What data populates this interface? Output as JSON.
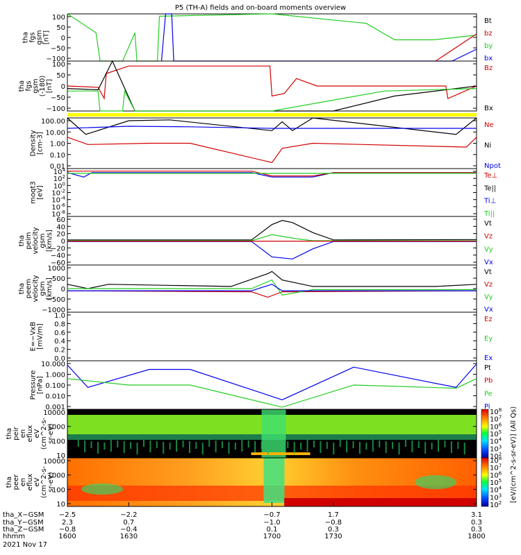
{
  "title": "P5 (TH-A) fields and on-board moments overview",
  "date_label": "2021 Nov 17",
  "colors": {
    "black": "#000000",
    "red": "#d00000",
    "green": "#22cc22",
    "blue": "#0000ee",
    "yellow": "#ffff00"
  },
  "chart_data": [
    {
      "type": "line",
      "panel": "fgs-gsm",
      "ylabel": [
        "tha",
        "fgs",
        "gsm",
        "[nT]"
      ],
      "yticks": [
        "100",
        "50",
        "0",
        "−50",
        "−100"
      ],
      "ylim": [
        -100,
        100
      ],
      "legend": [
        {
          "text": "Bt",
          "color": "#000000"
        },
        {
          "text": "bz",
          "color": "#d00000"
        },
        {
          "text": "by",
          "color": "#22cc22"
        },
        {
          "text": "bx",
          "color": "#0000ee"
        }
      ],
      "series": [
        {
          "name": "by",
          "color": "#22cc22",
          "points": [
            [
              1600,
              100
            ],
            [
              1614,
              20
            ],
            [
              1616,
              -100
            ],
            [
              1627,
              -100
            ],
            [
              1633,
              20
            ],
            [
              1634,
              -100
            ],
            [
              1644,
              -100
            ],
            [
              1645,
              90
            ],
            [
              1700,
              100
            ],
            [
              1746,
              60
            ],
            [
              1760,
              -10
            ],
            [
              1779,
              -10
            ],
            [
              1800,
              10
            ]
          ]
        },
        {
          "name": "bx",
          "color": "#0000ee",
          "points": [
            [
              1646,
              -100
            ],
            [
              1648,
              100
            ],
            [
              1651,
              100
            ],
            [
              1652,
              -100
            ],
            [
              1788,
              -100
            ],
            [
              1800,
              -50
            ]
          ]
        },
        {
          "name": "bz",
          "color": "#d00000",
          "points": [
            [
              1780,
              -100
            ],
            [
              1800,
              15
            ]
          ]
        }
      ]
    },
    {
      "type": "line",
      "panel": "fgs-gsm-sm",
      "ylabel": [
        "tha",
        "fgs",
        "gsm",
        "(-180)",
        "[nT]"
      ],
      "yticks": [
        "100",
        "50",
        "0",
        "−50",
        "−100"
      ],
      "ylim": [
        -100,
        100
      ],
      "legend": [
        {
          "text": "Bz",
          "color": "#d00000"
        },
        {
          "text": "Bx",
          "color": "#000000"
        }
      ],
      "series": [
        {
          "name": "Bz",
          "color": "#d00000",
          "points": [
            [
              1600,
              0
            ],
            [
              1615,
              -5
            ],
            [
              1618,
              -50
            ],
            [
              1619,
              50
            ],
            [
              1630,
              80
            ],
            [
              1699,
              80
            ],
            [
              1700,
              -40
            ],
            [
              1706,
              -30
            ],
            [
              1712,
              30
            ],
            [
              1722,
              0
            ],
            [
              1785,
              0
            ],
            [
              1786,
              -50
            ],
            [
              1800,
              0
            ]
          ]
        },
        {
          "name": "Bx",
          "color": "#000000",
          "points": [
            [
              1600,
              -10
            ],
            [
              1615,
              -15
            ],
            [
              1622,
              100
            ],
            [
              1633,
              -100
            ],
            [
              1700,
              -100
            ],
            [
              1730,
              -100
            ],
            [
              1760,
              -40
            ],
            [
              1800,
              0
            ]
          ]
        },
        {
          "name": "by",
          "color": "#22cc22",
          "points": [
            [
              1600,
              -20
            ],
            [
              1615,
              -20
            ],
            [
              1616,
              -100
            ],
            [
              1627,
              -100
            ],
            [
              1628,
              -20
            ],
            [
              1633,
              -100
            ],
            [
              1700,
              -100
            ],
            [
              1755,
              -20
            ],
            [
              1800,
              -10
            ]
          ]
        }
      ]
    },
    {
      "type": "line",
      "panel": "density",
      "ylabel": [
        "Density",
        "[cm-3]"
      ],
      "yticks": [
        "100.00",
        "10.00",
        "1.00",
        "0.10",
        "0.01"
      ],
      "yscale": "log",
      "ylim": [
        0.01,
        100
      ],
      "legend": [
        {
          "text": "Ne",
          "color": "#d00000"
        },
        {
          "text": "Ni",
          "color": "#000000"
        },
        {
          "text": "Npot",
          "color": "#0000ee"
        }
      ],
      "series": [
        {
          "name": "Ni",
          "color": "#000000",
          "points": [
            [
              1600,
              100
            ],
            [
              1609,
              5
            ],
            [
              1630,
              60
            ],
            [
              1650,
              70
            ],
            [
              1700,
              10
            ],
            [
              1705,
              50
            ],
            [
              1710,
              10
            ],
            [
              1720,
              200
            ],
            [
              1790,
              5
            ],
            [
              1800,
              100
            ]
          ]
        },
        {
          "name": "Npot",
          "color": "#0000ee",
          "points": [
            [
              1600,
              15
            ],
            [
              1630,
              22
            ],
            [
              1660,
              20
            ],
            [
              1700,
              15
            ],
            [
              1800,
              15
            ]
          ]
        },
        {
          "name": "Ne",
          "color": "#d00000",
          "points": [
            [
              1600,
              3
            ],
            [
              1610,
              0.8
            ],
            [
              1640,
              1
            ],
            [
              1660,
              1
            ],
            [
              1700,
              0.03
            ],
            [
              1705,
              0.4
            ],
            [
              1720,
              1
            ],
            [
              1795,
              0.5
            ],
            [
              1800,
              3
            ]
          ]
        }
      ]
    },
    {
      "type": "line",
      "panel": "temperature",
      "ylabel": [
        "moqt3",
        "[eV]"
      ],
      "yticks": [
        "10^4",
        "10^2",
        "10^0",
        "10^-2",
        "10^-4",
        "10^-6",
        "10^-8"
      ],
      "yscale": "log",
      "ylim": [
        1e-09,
        10000
      ],
      "legend": [
        {
          "text": "Te⊥",
          "color": "#d00000"
        },
        {
          "text": "Te||",
          "color": "#000000"
        },
        {
          "text": "Ti⊥",
          "color": "#0000ee"
        },
        {
          "text": "Ti||",
          "color": "#22cc22"
        }
      ],
      "series": [
        {
          "name": "Ti⊥",
          "color": "#0000ee",
          "points": [
            [
              1600,
              800
            ],
            [
              1608,
              50
            ],
            [
              1612,
              800
            ],
            [
              1690,
              800
            ],
            [
              1700,
              50
            ],
            [
              1720,
              50
            ],
            [
              1730,
              800
            ],
            [
              1800,
              800
            ]
          ]
        },
        {
          "name": "Te⊥",
          "color": "#d00000",
          "points": [
            [
              1600,
              2000
            ],
            [
              1690,
              2000
            ],
            [
              1700,
              100
            ],
            [
              1720,
              100
            ],
            [
              1730,
              800
            ],
            [
              1800,
              800
            ]
          ]
        },
        {
          "name": "Ti||",
          "color": "#22cc22",
          "points": [
            [
              1600,
              500
            ],
            [
              1800,
              500
            ]
          ]
        }
      ]
    },
    {
      "type": "line",
      "panel": "peim-velocity",
      "ylabel": [
        "tha",
        "peim",
        "velocity",
        "gsm",
        "[km/s]"
      ],
      "yticks": [
        "60",
        "40",
        "20",
        "0",
        "−20",
        "−40",
        "−60"
      ],
      "ylim": [
        -60,
        60
      ],
      "legend": [
        {
          "text": "Vt",
          "color": "#000000"
        },
        {
          "text": "Vz",
          "color": "#d00000"
        },
        {
          "text": "Vy",
          "color": "#22cc22"
        },
        {
          "text": "Vx",
          "color": "#0000ee"
        }
      ],
      "series": [
        {
          "name": "Vt",
          "color": "#000000",
          "points": [
            [
              1600,
              2
            ],
            [
              1690,
              2
            ],
            [
              1700,
              40
            ],
            [
              1705,
              50
            ],
            [
              1710,
              45
            ],
            [
              1720,
              20
            ],
            [
              1730,
              2
            ],
            [
              1800,
              3
            ]
          ]
        },
        {
          "name": "Vx",
          "color": "#0000ee",
          "points": [
            [
              1600,
              -2
            ],
            [
              1690,
              -2
            ],
            [
              1700,
              -40
            ],
            [
              1710,
              -45
            ],
            [
              1720,
              -20
            ],
            [
              1730,
              -2
            ],
            [
              1800,
              -2
            ]
          ]
        },
        {
          "name": "Vy",
          "color": "#22cc22",
          "points": [
            [
              1600,
              0
            ],
            [
              1690,
              0
            ],
            [
              1700,
              15
            ],
            [
              1712,
              5
            ],
            [
              1720,
              0
            ],
            [
              1800,
              0
            ]
          ]
        },
        {
          "name": "Vz",
          "color": "#d00000",
          "points": [
            [
              1600,
              -1
            ],
            [
              1800,
              -1
            ]
          ]
        }
      ]
    },
    {
      "type": "line",
      "panel": "peem-velocity",
      "ylabel": [
        "tha",
        "peem",
        "velocity",
        "gsm",
        "[km/s]"
      ],
      "yticks": [
        "1000",
        "500",
        "0",
        "−500",
        "−1000"
      ],
      "ylim": [
        -1000,
        1200
      ],
      "legend": [
        {
          "text": "Vt",
          "color": "#000000"
        },
        {
          "text": "Vz",
          "color": "#d00000"
        },
        {
          "text": "Vy",
          "color": "#22cc22"
        },
        {
          "text": "Vx",
          "color": "#0000ee"
        }
      ],
      "series": [
        {
          "name": "Vt",
          "color": "#000000",
          "points": [
            [
              1600,
              300
            ],
            [
              1610,
              100
            ],
            [
              1620,
              300
            ],
            [
              1680,
              200
            ],
            [
              1698,
              800
            ],
            [
              1700,
              900
            ],
            [
              1705,
              500
            ],
            [
              1720,
              200
            ],
            [
              1780,
              200
            ],
            [
              1800,
              300
            ]
          ]
        },
        {
          "name": "Vz",
          "color": "#d00000",
          "points": [
            [
              1600,
              0
            ],
            [
              1690,
              -50
            ],
            [
              1698,
              -300
            ],
            [
              1705,
              -50
            ],
            [
              1800,
              0
            ]
          ]
        },
        {
          "name": "Vy",
          "color": "#22cc22",
          "points": [
            [
              1600,
              100
            ],
            [
              1690,
              100
            ],
            [
              1700,
              500
            ],
            [
              1705,
              -200
            ],
            [
              1720,
              50
            ],
            [
              1800,
              50
            ]
          ]
        },
        {
          "name": "Vx",
          "color": "#0000ee",
          "points": [
            [
              1600,
              0
            ],
            [
              1690,
              0
            ],
            [
              1700,
              300
            ],
            [
              1705,
              0
            ],
            [
              1800,
              0
            ]
          ]
        }
      ]
    },
    {
      "type": "line",
      "panel": "efield",
      "ylabel": [
        "E=−VxB",
        "[mV/m]"
      ],
      "yticks": [
        "1.0",
        "0.8",
        "0.6",
        "0.4",
        "0.2",
        "0.0"
      ],
      "ylim": [
        0,
        1
      ],
      "legend": [
        {
          "text": "Ez",
          "color": "#d00000"
        },
        {
          "text": "Ey",
          "color": "#22cc22"
        },
        {
          "text": "Ex",
          "color": "#0000ee"
        }
      ],
      "series": []
    },
    {
      "type": "line",
      "panel": "pressure",
      "ylabel": [
        "Pressure",
        "[nPa]"
      ],
      "yticks": [
        "10.000",
        "1.000",
        "0.100",
        "0.010",
        "0.001"
      ],
      "yscale": "log",
      "ylim": [
        0.0005,
        20
      ],
      "legend": [
        {
          "text": "Pt",
          "color": "#000000"
        },
        {
          "text": "Pb",
          "color": "#d00000"
        },
        {
          "text": "Pe",
          "color": "#22cc22"
        },
        {
          "text": "Pi",
          "color": "#0000ee"
        }
      ],
      "series": [
        {
          "name": "Pi",
          "color": "#0000ee",
          "points": [
            [
              1600,
              8
            ],
            [
              1610,
              0.06
            ],
            [
              1640,
              3
            ],
            [
              1660,
              3
            ],
            [
              1705,
              0.004
            ],
            [
              1740,
              5
            ],
            [
              1790,
              0.06
            ],
            [
              1800,
              10
            ]
          ]
        },
        {
          "name": "Pe",
          "color": "#22cc22",
          "points": [
            [
              1600,
              0.4
            ],
            [
              1630,
              0.1
            ],
            [
              1660,
              0.1
            ],
            [
              1705,
              0.0008
            ],
            [
              1740,
              0.1
            ],
            [
              1790,
              0.05
            ],
            [
              1800,
              0.4
            ]
          ]
        }
      ]
    },
    {
      "type": "heatmap",
      "panel": "peir-eflux",
      "ylabel": [
        "tha",
        "peir",
        "en",
        "eflux",
        "eV",
        "(cm^2-s-",
        "sr-eV)"
      ],
      "yticks": [
        "10000",
        "1000",
        "100",
        "10"
      ],
      "yscale": "log",
      "colorbar_ticks": [
        "10^8",
        "10^7",
        "10^6",
        "10^5",
        "10^4",
        "10^3",
        "10^2"
      ]
    },
    {
      "type": "heatmap",
      "panel": "peer-eflux",
      "ylabel": [
        "tha",
        "peer",
        "en",
        "eflux",
        "eV",
        "(cm^2-s-",
        "sr-eV)"
      ],
      "yticks": [
        "10000",
        "1000",
        "100",
        "10"
      ],
      "yscale": "log",
      "colorbar_ticks": [
        "10^8",
        "10^7",
        "10^6",
        "10^5",
        "10^4",
        "10^3",
        "10^2"
      ],
      "colorbar_label": "[eV/(cm^2-s-sr-eV)] (All Qs)"
    }
  ],
  "x_axis": {
    "row_labels": [
      "tha_X−GSM",
      "tha_Y−GSM",
      "tha_Z−GSM",
      "hhmm"
    ],
    "columns": [
      {
        "hhmm": "1600",
        "x": "−2.5",
        "y": "2.3",
        "z": "−0.8"
      },
      {
        "hhmm": "1630",
        "x": "−2.2",
        "y": "0.7",
        "z": "−0.4"
      },
      {
        "hhmm": "1700",
        "x": "−0.7",
        "y": "−1.0",
        "z": "0.1"
      },
      {
        "hhmm": "1730",
        "x": "1.7",
        "y": "−0.8",
        "z": "0.3"
      },
      {
        "hhmm": "1800",
        "x": "3.1",
        "y": "0.3",
        "z": "0.3"
      }
    ]
  }
}
